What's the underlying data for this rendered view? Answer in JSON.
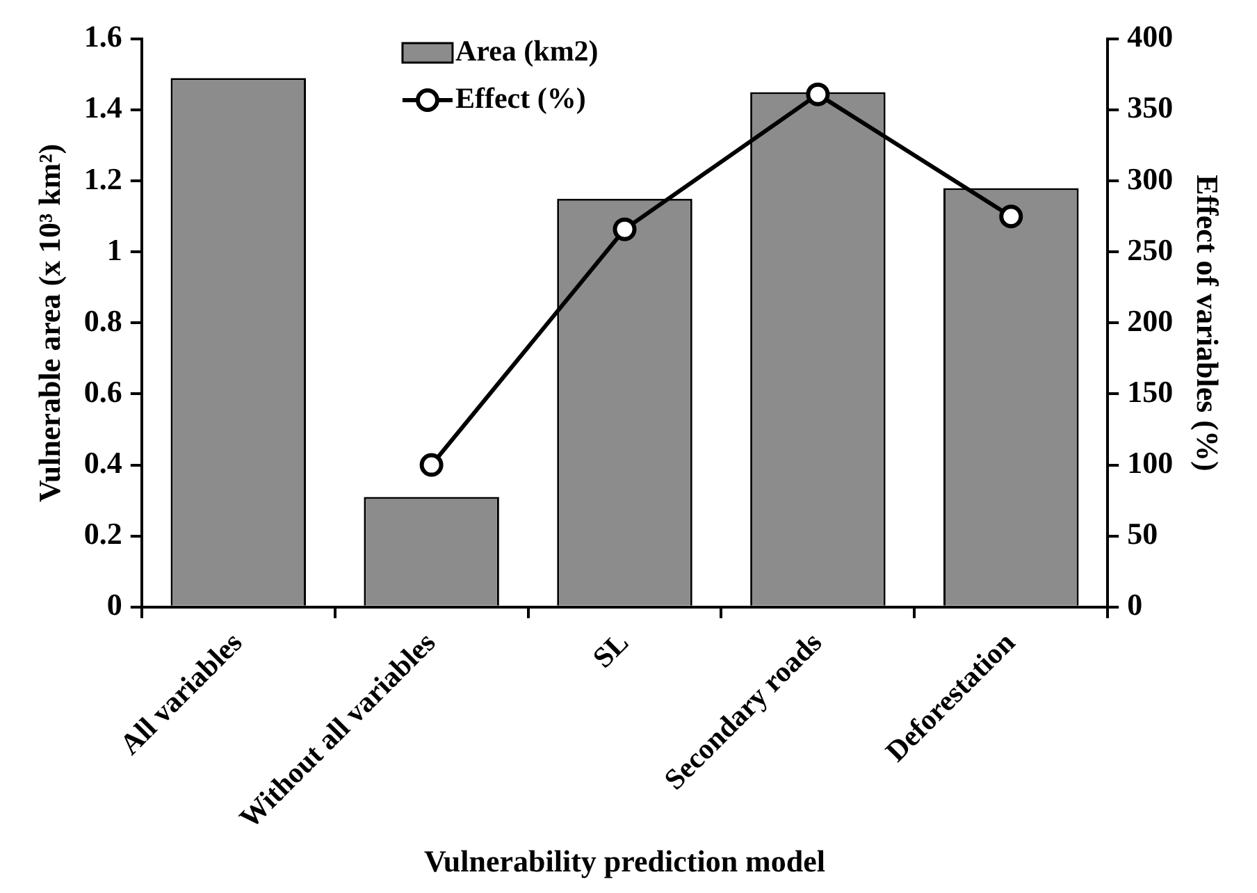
{
  "chart_data": {
    "type": "bar",
    "xlabel": "Vulnerability prediction model",
    "ylabel": "Vulnerable area (x 10³ km²)",
    "y2label": "Effect of variables (%)",
    "categories": [
      "All variables",
      "Without all variables",
      "SL",
      "Secondary roads",
      "Deforestation"
    ],
    "series": [
      {
        "name": "Area (km2)",
        "color": "#8c8c8c",
        "values": [
          1.49,
          0.31,
          1.15,
          1.45,
          1.18
        ]
      },
      {
        "name": "Effect (%)",
        "type": "line",
        "axis": "y2",
        "color": "#000000",
        "marker": "circle",
        "line_style": "solid",
        "values": [
          null,
          100,
          266,
          361,
          275
        ]
      }
    ],
    "ylim": [
      0,
      1.6
    ],
    "yticks": [
      0,
      0.2,
      0.4,
      0.6,
      0.8,
      1,
      1.2,
      1.4,
      1.6
    ],
    "y2lim": [
      0,
      400
    ],
    "y2ticks": [
      0,
      50,
      100,
      150,
      200,
      250,
      300,
      350,
      400
    ],
    "grid": false,
    "legend": "top"
  }
}
